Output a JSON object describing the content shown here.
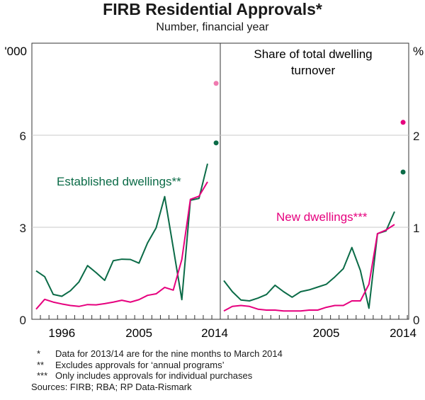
{
  "title": "FIRB Residential Approvals*",
  "subtitle": "Number, financial year",
  "colors": {
    "established": "#0b6b47",
    "new": "#e6007e",
    "new_dot_left": "#f07ab0",
    "grid": "#c8c8c8"
  },
  "chart_data": [
    {
      "type": "line",
      "panel": "left",
      "ylabel": "'000",
      "ylim": [
        0,
        9
      ],
      "yticks": [
        "0",
        "3",
        "6"
      ],
      "x": [
        1993,
        1994,
        1995,
        1996,
        1997,
        1998,
        1999,
        2000,
        2001,
        2002,
        2003,
        2004,
        2005,
        2006,
        2007,
        2008,
        2009,
        2010,
        2011,
        2012,
        2013,
        2014
      ],
      "xtick_labels": [
        "1996",
        "2005",
        "2014"
      ],
      "grid": true,
      "series": [
        {
          "name": "Established dwellings**",
          "color_key": "established",
          "values": [
            1.58,
            1.39,
            0.81,
            0.75,
            0.93,
            1.22,
            1.75,
            1.52,
            1.27,
            1.91,
            1.96,
            1.95,
            1.83,
            2.49,
            2.98,
            4.0,
            2.33,
            0.64,
            3.88,
            3.94,
            5.07,
            5.75
          ]
        },
        {
          "name": "New dwellings***",
          "color_key": "new",
          "values": [
            0.33,
            0.65,
            0.56,
            0.5,
            0.45,
            0.42,
            0.48,
            0.47,
            0.51,
            0.56,
            0.62,
            0.56,
            0.64,
            0.78,
            0.83,
            1.04,
            0.95,
            1.95,
            3.91,
            4.01,
            4.48,
            7.69
          ]
        }
      ],
      "annotation": "Established dwellings**"
    },
    {
      "type": "line",
      "panel": "right",
      "title": "Share of total dwelling turnover",
      "ylabel": "%",
      "ylim": [
        0,
        3
      ],
      "yticks": [
        "0",
        "1",
        "2"
      ],
      "x": [
        1993,
        1994,
        1995,
        1996,
        1997,
        1998,
        1999,
        2000,
        2001,
        2002,
        2003,
        2004,
        2005,
        2006,
        2007,
        2008,
        2009,
        2010,
        2011,
        2012,
        2013,
        2014
      ],
      "xtick_labels": [
        "2005",
        "2014"
      ],
      "grid": true,
      "series": [
        {
          "name": "Established dwellings**",
          "color_key": "established",
          "values": [
            0.42,
            0.3,
            0.21,
            0.2,
            0.23,
            0.27,
            0.37,
            0.3,
            0.24,
            0.3,
            0.32,
            0.35,
            0.38,
            0.46,
            0.55,
            0.78,
            0.53,
            0.12,
            0.93,
            0.96,
            1.17,
            1.6
          ]
        },
        {
          "name": "New dwellings***",
          "color_key": "new",
          "values": [
            0.09,
            0.14,
            0.15,
            0.14,
            0.11,
            0.1,
            0.1,
            0.09,
            0.09,
            0.09,
            0.1,
            0.1,
            0.13,
            0.15,
            0.15,
            0.2,
            0.2,
            0.38,
            0.93,
            0.97,
            1.03,
            2.14
          ]
        }
      ],
      "annotation": "New dwellings***"
    }
  ],
  "notes": [
    {
      "mark": "*",
      "text": "Data for 2013/14 are for the nine months to March 2014"
    },
    {
      "mark": "**",
      "text": "Excludes approvals for ‘annual programs’"
    },
    {
      "mark": "***",
      "text": "Only includes approvals for individual purchases"
    }
  ],
  "sources": "Sources: FIRB; RBA; RP Data-Rismark"
}
